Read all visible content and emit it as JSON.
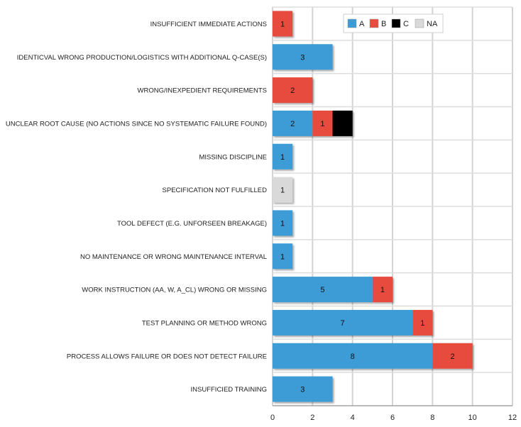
{
  "chart_data": {
    "type": "bar",
    "orientation": "horizontal",
    "stacked": true,
    "categories": [
      "INSUFFICIENT IMMEDIATE ACTIONS",
      "IDENTICVAL WRONG PRODUCTION/LOGISTICS WITH ADDITIONAL Q-CASE(S)",
      "WRONG/INEXPEDIENT REQUIREMENTS",
      "UNCLEAR ROOT CAUSE (NO ACTIONS SINCE NO SYSTEMATIC FAILURE FOUND)",
      "MISSING DISCIPLINE",
      "SPECIFICATION NOT FULFILLED",
      "TOOL DEFECT (E.G. UNFORSEEN BREAKAGE)",
      "NO MAINTENANCE OR WRONG MAINTENANCE INTERVAL",
      "WORK INSTRUCTION (AA, W, A_CL) WRONG OR MISSING",
      "TEST PLANNING OR METHOD WRONG",
      "PROCESS ALLOWS FAILURE OR DOES NOT DETECT FAILURE",
      "INSUFFICIED TRAINING"
    ],
    "series": [
      {
        "name": "A",
        "color": "#3d9bd6",
        "values": [
          0,
          3,
          0,
          2,
          1,
          0,
          1,
          1,
          5,
          7,
          8,
          3
        ]
      },
      {
        "name": "B",
        "color": "#e74c3c",
        "values": [
          1,
          0,
          2,
          1,
          0,
          0,
          0,
          0,
          1,
          1,
          2,
          0
        ]
      },
      {
        "name": "C",
        "color": "#000000",
        "values": [
          0,
          0,
          0,
          1,
          0,
          0,
          0,
          0,
          0,
          0,
          0,
          0
        ]
      },
      {
        "name": "NA",
        "color": "#d9d9d9",
        "values": [
          0,
          0,
          0,
          0,
          0,
          1,
          0,
          0,
          0,
          0,
          0,
          0
        ]
      }
    ],
    "xlim": [
      0,
      12
    ],
    "xticks": [
      0,
      2,
      4,
      6,
      8,
      10,
      12
    ],
    "title": "",
    "xlabel": "",
    "ylabel": "",
    "grid": true,
    "legend_position": "top-right",
    "data_labels": true,
    "data_label_skip_series": [
      "C"
    ]
  }
}
